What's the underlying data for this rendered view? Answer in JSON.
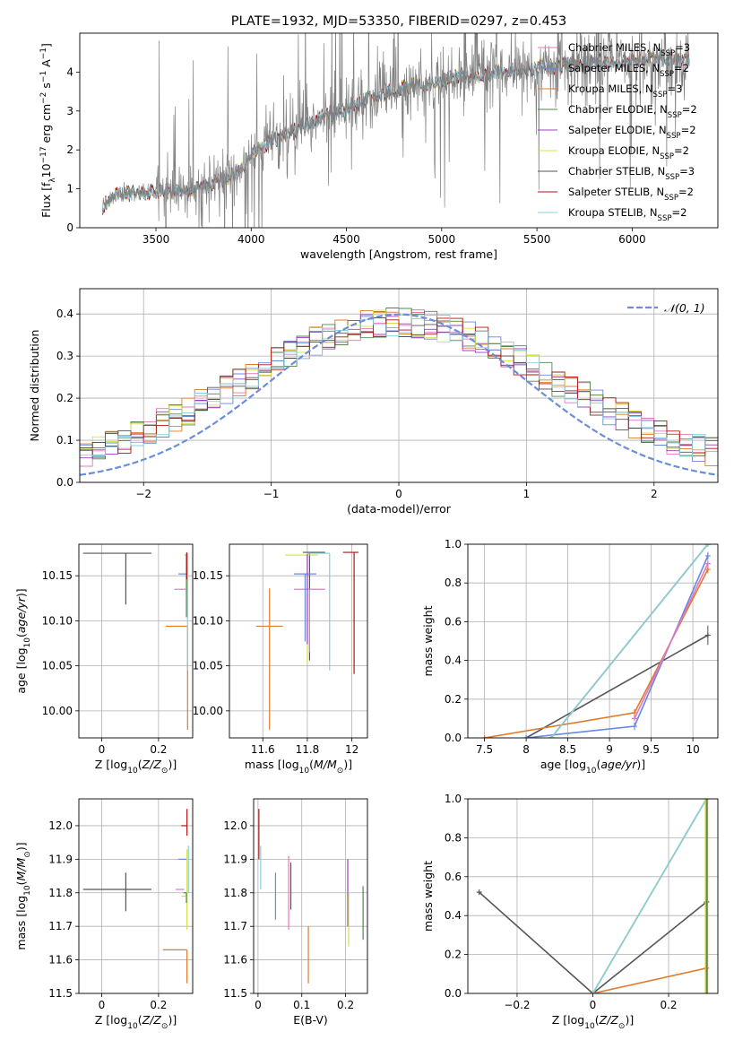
{
  "colors": {
    "chabrier_miles": "#e377c2",
    "salpeter_miles": "#6688dd",
    "kroupa_miles": "#e07b29",
    "chabrier_elodie": "#4a8a4a",
    "salpeter_elodie": "#9a3fc0",
    "kroupa_elodie": "#d4e04a",
    "chabrier_stelib": "#555555",
    "salpeter_stelib": "#b01515",
    "kroupa_stelib": "#88ccdd",
    "data": "#808080",
    "normal": "#6a8fd8",
    "grid": "#b0b0b0"
  },
  "chart_data": [
    {
      "id": "spectrum",
      "type": "line",
      "title": "PLATE=1932, MJD=53350, FIBERID=0297, z=0.453",
      "xlabel": "wavelength [Angstrom, rest frame]",
      "ylabel": "Flux [f_λ 10⁻¹⁷ erg cm⁻² s⁻¹ A⁻¹]",
      "xlim": [
        3100,
        6450
      ],
      "ylim": [
        0,
        5
      ],
      "xticks": [
        3500,
        4000,
        4500,
        5000,
        5500,
        6000
      ],
      "yticks": [
        0,
        1,
        2,
        3,
        4
      ],
      "grid": false,
      "legend_position": "top-right",
      "legend": [
        {
          "label": "Chabrier MILES, N",
          "sub": "SSP",
          "suffix": "=3",
          "color": "chabrier_miles"
        },
        {
          "label": "Salpeter MILES, N",
          "sub": "SSP",
          "suffix": "=2",
          "color": "salpeter_miles"
        },
        {
          "label": "Kroupa MILES, N",
          "sub": "SSP",
          "suffix": "=3",
          "color": "kroupa_miles"
        },
        {
          "label": "Chabrier ELODIE, N",
          "sub": "SSP",
          "suffix": "=2",
          "color": "chabrier_elodie"
        },
        {
          "label": "Salpeter ELODIE, N",
          "sub": "SSP",
          "suffix": "=2",
          "color": "salpeter_elodie"
        },
        {
          "label": "Kroupa ELODIE, N",
          "sub": "SSP",
          "suffix": "=2",
          "color": "kroupa_elodie"
        },
        {
          "label": "Chabrier STELIB, N",
          "sub": "SSP",
          "suffix": "=3",
          "color": "chabrier_stelib"
        },
        {
          "label": "Salpeter STELIB, N",
          "sub": "SSP",
          "suffix": "=2",
          "color": "salpeter_stelib"
        },
        {
          "label": "Kroupa STELIB, N",
          "sub": "SSP",
          "suffix": "=2",
          "color": "kroupa_stelib"
        }
      ],
      "continuum": {
        "x": [
          3220,
          3300,
          3400,
          3500,
          3600,
          3700,
          3800,
          3900,
          3950,
          4000,
          4100,
          4200,
          4300,
          4400,
          4500,
          4600,
          4700,
          4800,
          4900,
          5000,
          5100,
          5200,
          5300,
          5400,
          5500,
          5600,
          5700,
          5800,
          5900,
          6000,
          6100,
          6200,
          6300
        ],
        "y": [
          0.55,
          0.85,
          0.9,
          0.95,
          0.95,
          1.0,
          1.15,
          1.35,
          1.5,
          1.95,
          2.2,
          2.45,
          2.65,
          2.9,
          3.05,
          3.3,
          3.45,
          3.6,
          3.65,
          3.75,
          3.9,
          3.95,
          4.0,
          4.05,
          4.1,
          4.15,
          4.2,
          4.25,
          4.28,
          4.3,
          4.35,
          4.35,
          4.3
        ]
      },
      "data_noisy_from": 3500
    },
    {
      "id": "residuals",
      "type": "histogram",
      "xlabel": "(data-model)/error",
      "ylabel": "Normed distribution",
      "xlim": [
        -2.5,
        2.5
      ],
      "ylim": [
        0,
        0.46
      ],
      "xticks": [
        -2,
        -1,
        0,
        1,
        2
      ],
      "yticks": [
        0.0,
        0.1,
        0.2,
        0.3,
        0.4
      ],
      "grid": true,
      "legend_position": "top-right",
      "legend": [
        {
          "label": "𝒩(0, 1)",
          "color": "normal",
          "style": "dashed"
        }
      ],
      "bin_width": 0.1,
      "bin_start": -2.5
    },
    {
      "id": "age_vs_Z",
      "type": "errorbar",
      "xlabel": "Z [log10(Z/Z⊙)]",
      "ylabel": "age  [log10(age/yr)]",
      "xlim": [
        -0.08,
        0.32
      ],
      "ylim": [
        9.97,
        10.185
      ],
      "xticks": [
        0.0,
        0.2
      ],
      "yticks": [
        10.0,
        10.05,
        10.1,
        10.15
      ],
      "grid": true,
      "points": [
        {
          "x": 0.085,
          "y": 10.175,
          "xerr": [
            0.15,
            0.09
          ],
          "yerr": [
            0.057,
            0.0
          ],
          "color": "chabrier_stelib"
        },
        {
          "x": 0.295,
          "y": 10.094,
          "xerr": [
            0.07,
            0.005
          ],
          "yerr": [
            0.0,
            0.0
          ],
          "color": "kroupa_miles"
        },
        {
          "x": 0.302,
          "y": 10.094,
          "xerr": [
            0.0,
            0.0
          ],
          "yerr": [
            0.115,
            0.0
          ],
          "color": "kroupa_miles"
        },
        {
          "x": 0.295,
          "y": 10.135,
          "xerr": [
            0.04,
            0.0
          ],
          "yerr": [
            0.0,
            0.0
          ],
          "color": "chabrier_miles"
        },
        {
          "x": 0.3,
          "y": 10.152,
          "xerr": [
            0.03,
            0.0
          ],
          "yerr": [
            0.0,
            0.0
          ],
          "color": "salpeter_miles"
        },
        {
          "x": 0.3,
          "y": 10.173,
          "xerr": [
            0.01,
            0.0
          ],
          "yerr": [
            0.04,
            0.0
          ],
          "color": "kroupa_elodie"
        },
        {
          "x": 0.302,
          "y": 10.175,
          "xerr": [
            0.0,
            0.0
          ],
          "yerr": [
            0.13,
            0.0
          ],
          "color": "kroupa_stelib"
        },
        {
          "x": 0.298,
          "y": 10.174,
          "xerr": [
            0.0,
            0.0
          ],
          "yerr": [
            0.07,
            0.0
          ],
          "color": "chabrier_elodie"
        },
        {
          "x": 0.299,
          "y": 10.176,
          "xerr": [
            0.0,
            0.0
          ],
          "yerr": [
            0.03,
            0.0
          ],
          "color": "salpeter_stelib"
        }
      ]
    },
    {
      "id": "age_vs_mass",
      "type": "errorbar",
      "xlabel": "mass [log10(M/M⊙)]",
      "ylabel": "",
      "xlim": [
        11.45,
        12.07
      ],
      "ylim": [
        9.97,
        10.185
      ],
      "xticks": [
        11.6,
        11.8,
        12.0
      ],
      "yticks": [
        10.0,
        10.05,
        10.1,
        10.15
      ],
      "grid": true,
      "points": [
        {
          "x": 11.63,
          "y": 10.094,
          "xerr": [
            0.06,
            0.06
          ],
          "yerr": [
            0.115,
            0.042
          ],
          "color": "kroupa_miles"
        },
        {
          "x": 11.81,
          "y": 10.176,
          "xerr": [
            0.03,
            0.07
          ],
          "yerr": [
            0.12,
            0.0
          ],
          "color": "chabrier_stelib"
        },
        {
          "x": 11.81,
          "y": 10.135,
          "xerr": [
            0.07,
            0.07
          ],
          "yerr": [
            0.07,
            0.0
          ],
          "color": "chabrier_miles"
        },
        {
          "x": 11.79,
          "y": 10.152,
          "xerr": [
            0.05,
            0.05
          ],
          "yerr": [
            0.075,
            0.0
          ],
          "color": "salpeter_miles"
        },
        {
          "x": 11.8,
          "y": 10.173,
          "xerr": [
            0.1,
            0.05
          ],
          "yerr": [
            0.12,
            0.0
          ],
          "color": "kroupa_elodie"
        },
        {
          "x": 11.9,
          "y": 10.175,
          "xerr": [
            0.1,
            0.0
          ],
          "yerr": [
            0.13,
            0.0
          ],
          "color": "kroupa_stelib"
        },
        {
          "x": 11.8,
          "y": 10.174,
          "xerr": [
            0.0,
            0.0
          ],
          "yerr": [
            0.1,
            0.0
          ],
          "color": "salpeter_elodie"
        },
        {
          "x": 12.01,
          "y": 10.176,
          "xerr": [
            0.05,
            0.02
          ],
          "yerr": [
            0.135,
            0.0
          ],
          "color": "salpeter_stelib"
        }
      ]
    },
    {
      "id": "weight_vs_age",
      "type": "line",
      "xlabel": "age  [log10(age/yr)]",
      "ylabel": "mass weight",
      "xlim": [
        7.3,
        10.3
      ],
      "ylim": [
        0,
        1
      ],
      "xticks": [
        7.5,
        8.0,
        8.5,
        9.0,
        9.5,
        10.0
      ],
      "yticks": [
        0.0,
        0.2,
        0.4,
        0.6,
        0.8,
        1.0
      ],
      "grid": true,
      "series": [
        {
          "color": "chabrier_stelib",
          "x": [
            8.0,
            10.18
          ],
          "y": [
            0.0,
            0.53
          ],
          "err": [
            0,
            0.05
          ]
        },
        {
          "color": "kroupa_miles",
          "x": [
            7.5,
            9.3,
            10.18
          ],
          "y": [
            0.0,
            0.13,
            0.87
          ],
          "err": [
            0,
            0.02,
            0.02
          ]
        },
        {
          "color": "salpeter_miles",
          "x": [
            8.0,
            9.3,
            10.18
          ],
          "y": [
            0.0,
            0.06,
            0.94
          ],
          "err": [
            0,
            0.02,
            0.02
          ]
        },
        {
          "color": "chabrier_miles",
          "x": [
            9.3,
            10.18
          ],
          "y": [
            0.1,
            0.9
          ],
          "err": [
            0.01,
            0.02
          ]
        },
        {
          "color": "chabrier_elodie",
          "x": [
            8.3,
            10.18
          ],
          "y": [
            0.0,
            1.0
          ],
          "err": [
            0,
            0.01
          ]
        },
        {
          "color": "salpeter_elodie",
          "x": [
            8.3,
            10.18
          ],
          "y": [
            0.0,
            1.0
          ],
          "err": [
            0,
            0.01
          ]
        },
        {
          "color": "kroupa_elodie",
          "x": [
            8.3,
            10.18
          ],
          "y": [
            0.0,
            1.0
          ],
          "err": [
            0,
            0.01
          ]
        },
        {
          "color": "kroupa_stelib",
          "x": [
            8.3,
            10.18
          ],
          "y": [
            0.0,
            1.0
          ],
          "err": [
            0,
            0.01
          ]
        }
      ]
    },
    {
      "id": "mass_vs_Z",
      "type": "errorbar",
      "xlabel": "Z [log10(Z/Z⊙)]",
      "ylabel": "mass [log10(M/M⊙)]",
      "xlim": [
        -0.08,
        0.32
      ],
      "ylim": [
        11.5,
        12.08
      ],
      "xticks": [
        0.0,
        0.2
      ],
      "yticks": [
        11.5,
        11.6,
        11.7,
        11.8,
        11.9,
        12.0
      ],
      "grid": true,
      "points": [
        {
          "x": 0.085,
          "y": 11.81,
          "xerr": [
            0.15,
            0.09
          ],
          "yerr": [
            0.065,
            0.05
          ],
          "color": "chabrier_stelib"
        },
        {
          "x": 0.3,
          "y": 11.63,
          "xerr": [
            0.085,
            0.0
          ],
          "yerr": [
            0.1,
            0.0
          ],
          "color": "kroupa_miles"
        },
        {
          "x": 0.29,
          "y": 11.9,
          "xerr": [
            0.02,
            0.01
          ],
          "yerr": [
            0.0,
            0.0
          ],
          "color": "salpeter_miles"
        },
        {
          "x": 0.29,
          "y": 11.81,
          "xerr": [
            0.03,
            0.0
          ],
          "yerr": [
            0.0,
            0.0
          ],
          "color": "chabrier_miles"
        },
        {
          "x": 0.3,
          "y": 11.79,
          "xerr": [
            0.02,
            0.0
          ],
          "yerr": [
            0.1,
            0.14
          ],
          "color": "kroupa_elodie"
        },
        {
          "x": 0.3,
          "y": 12.0,
          "xerr": [
            0.02,
            0.0
          ],
          "yerr": [
            0.03,
            0.05
          ],
          "color": "salpeter_stelib"
        },
        {
          "x": 0.305,
          "y": 11.85,
          "xerr": [
            0.0,
            0.0
          ],
          "yerr": [
            0.05,
            0.09
          ],
          "color": "kroupa_stelib"
        },
        {
          "x": 0.298,
          "y": 11.8,
          "xerr": [
            0.01,
            0.0
          ],
          "yerr": [
            0.03,
            0.0
          ],
          "color": "chabrier_elodie"
        }
      ]
    },
    {
      "id": "mass_vs_ebv",
      "type": "errorbar",
      "xlabel": "E(B-V)",
      "ylabel": "",
      "xlim": [
        -0.01,
        0.25
      ],
      "ylim": [
        11.5,
        12.08
      ],
      "xticks": [
        0.0,
        0.1,
        0.2
      ],
      "yticks": [
        11.5,
        11.6,
        11.7,
        11.8,
        11.9,
        12.0
      ],
      "grid": true,
      "points": [
        {
          "x": 0.002,
          "y": 11.96,
          "xerr": [
            0,
            0
          ],
          "yerr": [
            0.06,
            0.09
          ],
          "color": "salpeter_stelib"
        },
        {
          "x": 0.006,
          "y": 11.88,
          "xerr": [
            0,
            0
          ],
          "yerr": [
            0.07,
            0.06
          ],
          "color": "kroupa_stelib"
        },
        {
          "x": 0.04,
          "y": 11.8,
          "xerr": [
            0,
            0
          ],
          "yerr": [
            0.08,
            0.06
          ],
          "color": "salpeter_miles"
        },
        {
          "x": 0.07,
          "y": 11.8,
          "xerr": [
            0,
            0
          ],
          "yerr": [
            0.11,
            0.11
          ],
          "color": "chabrier_miles"
        },
        {
          "x": 0.075,
          "y": 11.82,
          "xerr": [
            0,
            0
          ],
          "yerr": [
            0.07,
            0.07
          ],
          "color": "chabrier_stelib"
        },
        {
          "x": 0.115,
          "y": 11.63,
          "xerr": [
            0,
            0
          ],
          "yerr": [
            0.1,
            0.07
          ],
          "color": "kroupa_miles"
        },
        {
          "x": 0.205,
          "y": 11.8,
          "xerr": [
            0,
            0
          ],
          "yerr": [
            0.1,
            0.1
          ],
          "color": "salpeter_elodie"
        },
        {
          "x": 0.207,
          "y": 11.71,
          "xerr": [
            0,
            0
          ],
          "yerr": [
            0.07,
            0.09
          ],
          "color": "kroupa_elodie"
        },
        {
          "x": 0.24,
          "y": 11.74,
          "xerr": [
            0,
            0
          ],
          "yerr": [
            0.08,
            0.08
          ],
          "color": "chabrier_elodie"
        }
      ]
    },
    {
      "id": "weight_vs_Z",
      "type": "line",
      "xlabel": "Z [log10(Z/Z⊙)]",
      "ylabel": "mass weight",
      "xlim": [
        -0.33,
        0.33
      ],
      "ylim": [
        0,
        1
      ],
      "xticks": [
        -0.2,
        0.0,
        0.2
      ],
      "yticks": [
        0.0,
        0.2,
        0.4,
        0.6,
        0.8,
        1.0
      ],
      "grid": true,
      "series": [
        {
          "color": "chabrier_stelib",
          "x": [
            -0.3,
            0.0,
            0.3
          ],
          "y": [
            0.52,
            0.0,
            0.47
          ]
        },
        {
          "color": "kroupa_miles",
          "x": [
            0.0,
            0.3
          ],
          "y": [
            0.0,
            0.13
          ]
        },
        {
          "color": "chabrier_elodie",
          "x": [
            0.0,
            0.3
          ],
          "y": [
            0.0,
            1.0
          ]
        },
        {
          "color": "kroupa_elodie",
          "x": [
            0.0,
            0.3
          ],
          "y": [
            0.0,
            1.0
          ]
        },
        {
          "color": "kroupa_stelib",
          "x": [
            0.0,
            0.3
          ],
          "y": [
            0.0,
            1.0
          ]
        }
      ]
    }
  ]
}
